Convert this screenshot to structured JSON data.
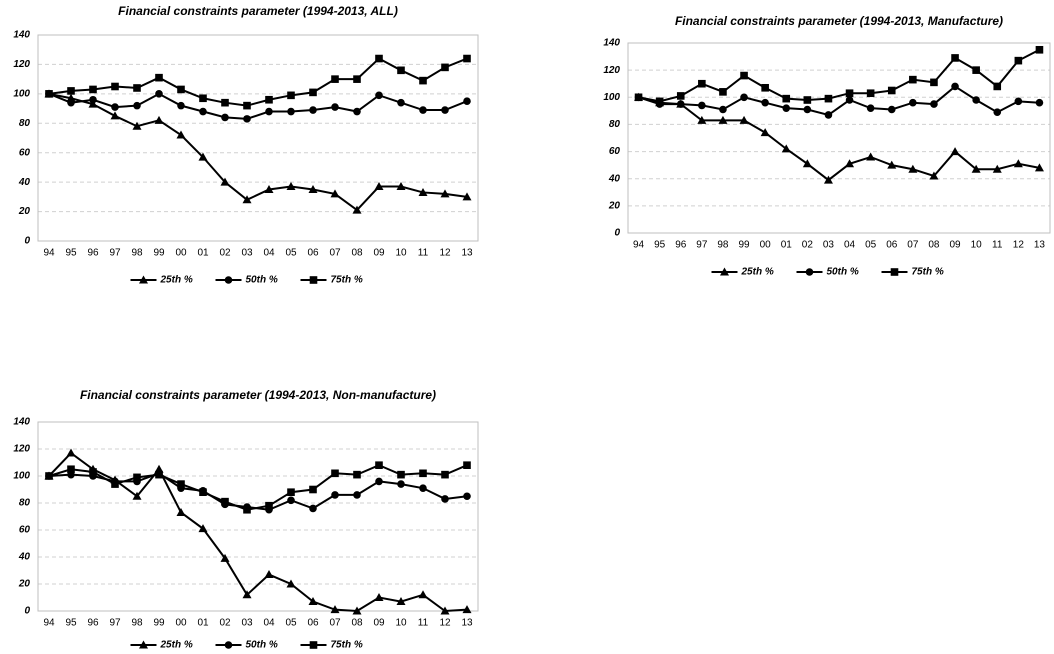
{
  "chart_data": [
    {
      "type": "line",
      "title": "Financial constraints parameter (1994-2013, ALL)",
      "categories": [
        "94",
        "95",
        "96",
        "97",
        "98",
        "99",
        "00",
        "01",
        "02",
        "03",
        "04",
        "05",
        "06",
        "07",
        "08",
        "09",
        "10",
        "11",
        "12",
        "13"
      ],
      "ylim": [
        0,
        140
      ],
      "yticks": [
        0,
        20,
        40,
        60,
        80,
        100,
        120,
        140
      ],
      "grid": true,
      "series": [
        {
          "name": "25th %",
          "color": "#000000",
          "marker": "triangle",
          "values": [
            100,
            97,
            93,
            85,
            78,
            82,
            72,
            57,
            40,
            28,
            35,
            37,
            35,
            32,
            21,
            37,
            37,
            33,
            32,
            30
          ]
        },
        {
          "name": "50th %",
          "color": "#000000",
          "marker": "circle",
          "values": [
            100,
            94,
            96,
            91,
            92,
            100,
            92,
            88,
            84,
            83,
            88,
            88,
            89,
            91,
            88,
            99,
            94,
            89,
            89,
            95
          ]
        },
        {
          "name": "75th %",
          "color": "#000000",
          "marker": "square",
          "values": [
            100,
            102,
            103,
            105,
            104,
            111,
            103,
            97,
            94,
            92,
            96,
            99,
            101,
            110,
            110,
            124,
            116,
            109,
            118,
            124
          ]
        }
      ]
    },
    {
      "type": "line",
      "title": "Financial constraints parameter (1994-2013, Manufacture)",
      "categories": [
        "94",
        "95",
        "96",
        "97",
        "98",
        "99",
        "00",
        "01",
        "02",
        "03",
        "04",
        "05",
        "06",
        "07",
        "08",
        "09",
        "10",
        "11",
        "12",
        "13"
      ],
      "ylim": [
        0,
        140
      ],
      "yticks": [
        0,
        20,
        40,
        60,
        80,
        100,
        120,
        140
      ],
      "grid": true,
      "series": [
        {
          "name": "25th %",
          "color": "#000000",
          "marker": "triangle",
          "values": [
            100,
            96,
            95,
            83,
            83,
            83,
            74,
            62,
            51,
            39,
            51,
            56,
            50,
            47,
            42,
            60,
            47,
            47,
            51,
            48
          ]
        },
        {
          "name": "50th %",
          "color": "#000000",
          "marker": "circle",
          "values": [
            100,
            95,
            95,
            94,
            91,
            100,
            96,
            92,
            91,
            87,
            98,
            92,
            91,
            96,
            95,
            108,
            98,
            89,
            97,
            96
          ]
        },
        {
          "name": "75th %",
          "color": "#000000",
          "marker": "square",
          "values": [
            100,
            97,
            101,
            110,
            104,
            116,
            107,
            99,
            98,
            99,
            103,
            103,
            105,
            113,
            111,
            129,
            120,
            108,
            127,
            135
          ]
        }
      ]
    },
    {
      "type": "line",
      "title": "Financial constraints parameter (1994-2013, Non-manufacture)",
      "categories": [
        "94",
        "95",
        "96",
        "97",
        "98",
        "99",
        "00",
        "01",
        "02",
        "03",
        "04",
        "05",
        "06",
        "07",
        "08",
        "09",
        "10",
        "11",
        "12",
        "13"
      ],
      "ylim": [
        0,
        140
      ],
      "yticks": [
        0,
        20,
        40,
        60,
        80,
        100,
        120,
        140
      ],
      "grid": true,
      "series": [
        {
          "name": "25th %",
          "color": "#000000",
          "marker": "triangle",
          "values": [
            100,
            117,
            105,
            97,
            85,
            105,
            73,
            61,
            39,
            12,
            27,
            20,
            7,
            1,
            0,
            10,
            7,
            12,
            0,
            1
          ]
        },
        {
          "name": "50th %",
          "color": "#000000",
          "marker": "circle",
          "values": [
            100,
            101,
            100,
            96,
            96,
            102,
            91,
            89,
            79,
            77,
            75,
            82,
            76,
            86,
            86,
            96,
            94,
            91,
            83,
            85
          ]
        },
        {
          "name": "75th %",
          "color": "#000000",
          "marker": "square",
          "values": [
            100,
            105,
            103,
            94,
            99,
            101,
            94,
            88,
            81,
            75,
            78,
            88,
            90,
            102,
            101,
            108,
            101,
            102,
            101,
            108
          ]
        }
      ]
    }
  ]
}
